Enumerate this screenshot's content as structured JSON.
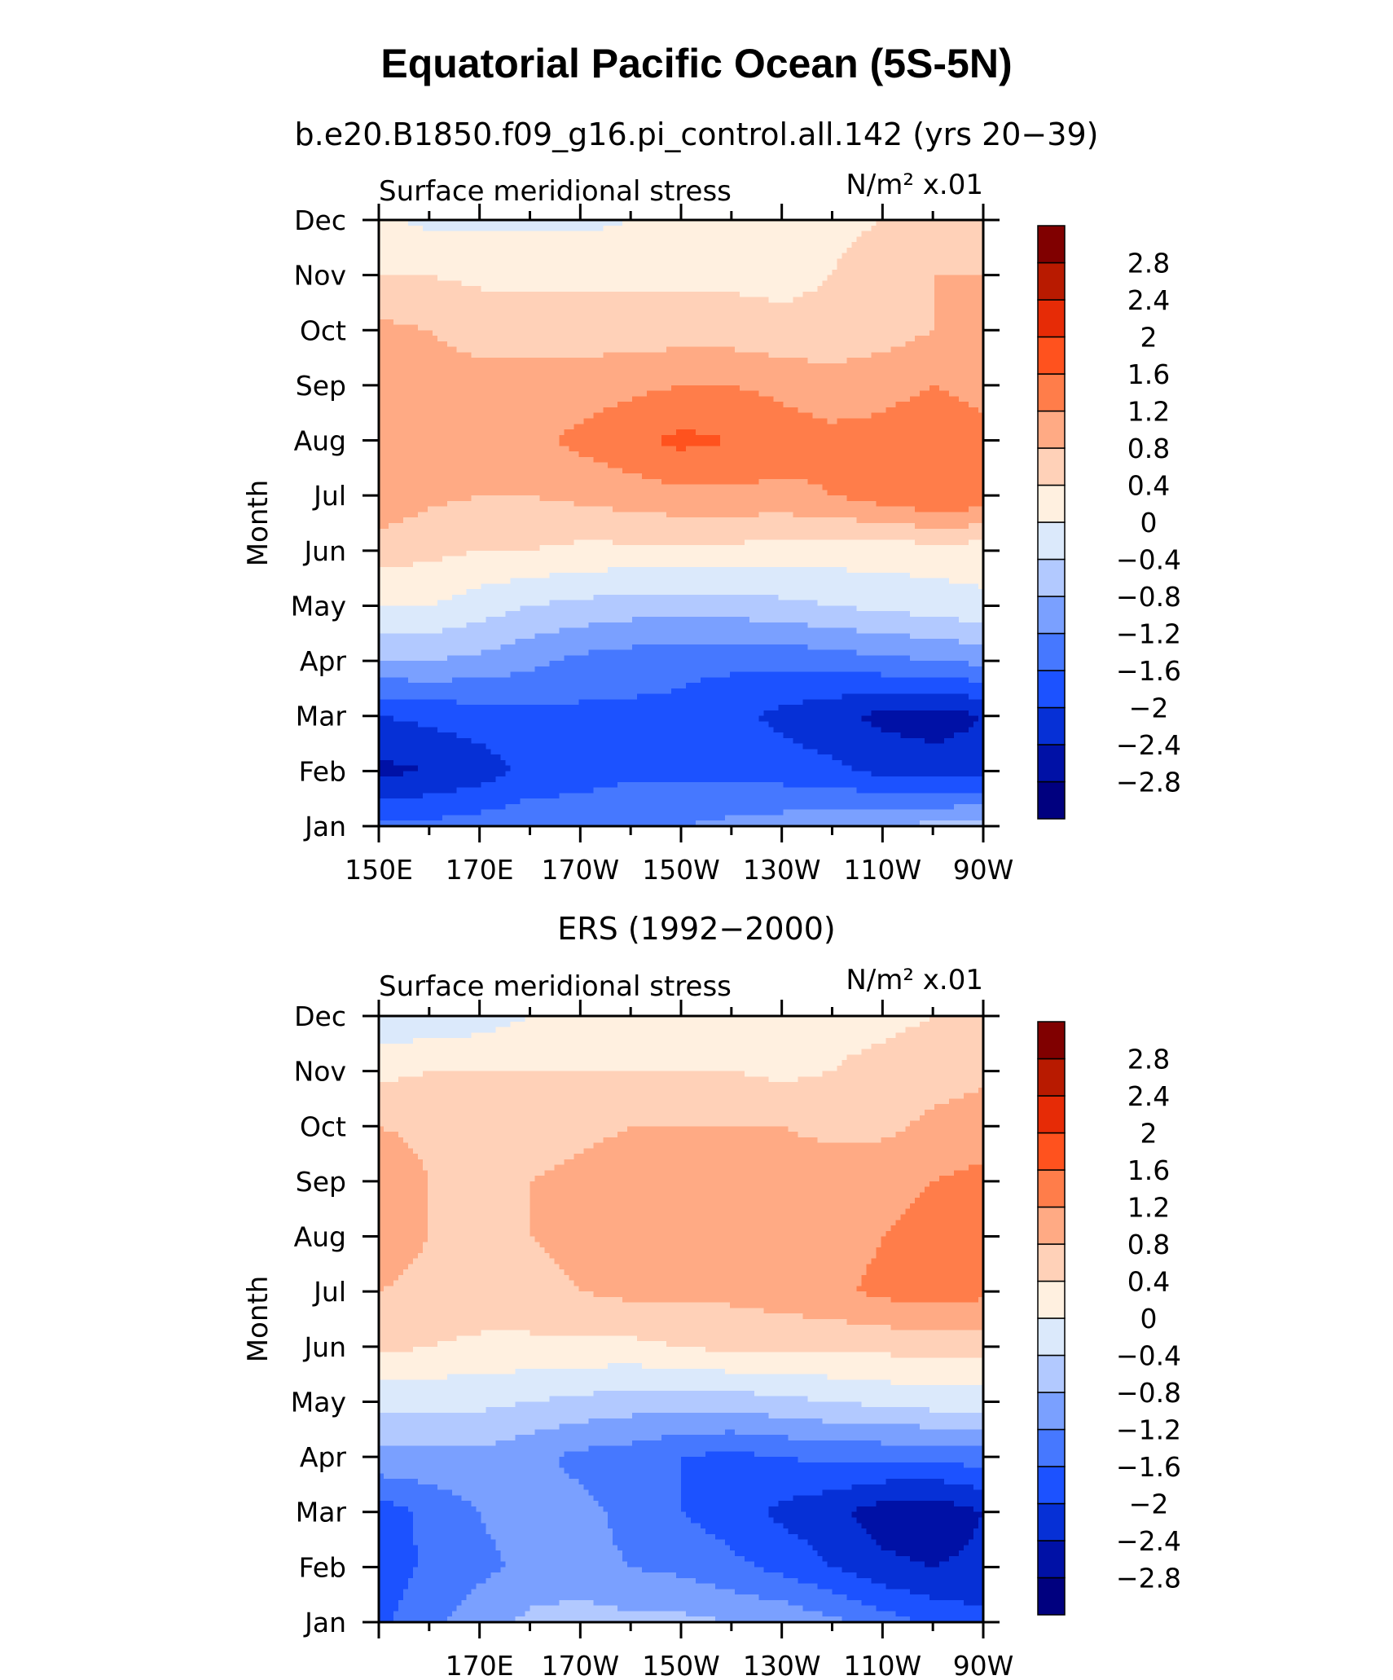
{
  "title": "Equatorial Pacific Ocean (5S-5N)",
  "colorbar": {
    "levels": [
      -2.8,
      -2.4,
      -2,
      -1.6,
      -1.2,
      -0.8,
      -0.4,
      0,
      0.4,
      0.8,
      1.2,
      1.6,
      2,
      2.4,
      2.8
    ],
    "level_labels": [
      "−2.8",
      "−2.4",
      "−2",
      "−1.6",
      "−1.2",
      "−0.8",
      "−0.4",
      "0",
      "0.4",
      "0.8",
      "1.2",
      "1.6",
      "2",
      "2.4",
      "2.8"
    ],
    "colors": [
      "#00007f",
      "#0011a6",
      "#0630d6",
      "#1c52ff",
      "#4678ff",
      "#7aa0ff",
      "#b2c9ff",
      "#dbe9fb",
      "#fff0e0",
      "#ffd1b8",
      "#ffaa84",
      "#ff7d4a",
      "#ff521e",
      "#e62b06",
      "#b81a00",
      "#800000"
    ]
  },
  "chart_data": [
    {
      "type": "heatmap",
      "subtitle": "b.e20.B1850.f09_g16.pi_control.all.142 (yrs 20−39)",
      "left_label": "Surface meridional stress",
      "units_label": "N/m² x.01",
      "ylabel": "Month",
      "y_categories": [
        "Jan",
        "Feb",
        "Mar",
        "Apr",
        "May",
        "Jun",
        "Jul",
        "Aug",
        "Sep",
        "Oct",
        "Nov",
        "Dec"
      ],
      "x_tick_labels": [
        "150E",
        "170E",
        "170W",
        "150W",
        "130W",
        "110W",
        "90W"
      ],
      "x_tick_values": [
        150,
        170,
        190,
        210,
        230,
        250,
        270
      ],
      "xlim": [
        150,
        270
      ],
      "x_nodes": [
        150,
        160,
        170,
        180,
        190,
        200,
        210,
        220,
        230,
        240,
        250,
        260,
        270
      ],
      "values": [
        [
          -1.5,
          -1.5,
          -1.4,
          -1.3,
          -1.3,
          -1.2,
          -1.2,
          -1.1,
          -1.0,
          -0.9,
          -0.8,
          -0.7,
          -0.6
        ],
        [
          -2.5,
          -2.4,
          -2.2,
          -1.9,
          -1.8,
          -1.7,
          -1.7,
          -1.7,
          -1.8,
          -1.9,
          -2.1,
          -2.2,
          -2.2
        ],
        [
          -2.0,
          -1.9,
          -1.8,
          -1.7,
          -1.7,
          -1.7,
          -1.7,
          -1.9,
          -2.1,
          -2.3,
          -2.5,
          -2.6,
          -2.4
        ],
        [
          -0.8,
          -0.8,
          -0.9,
          -1.1,
          -1.3,
          -1.4,
          -1.5,
          -1.5,
          -1.5,
          -1.4,
          -1.3,
          -1.2,
          -1.1
        ],
        [
          0.0,
          0.0,
          -0.2,
          -0.4,
          -0.5,
          -0.6,
          -0.6,
          -0.6,
          -0.5,
          -0.4,
          -0.3,
          -0.2,
          -0.1
        ],
        [
          0.6,
          0.5,
          0.4,
          0.4,
          0.3,
          0.3,
          0.3,
          0.3,
          0.2,
          0.2,
          0.2,
          0.2,
          0.2
        ],
        [
          1.1,
          0.9,
          0.8,
          0.8,
          0.9,
          1.0,
          1.1,
          1.1,
          1.1,
          1.2,
          1.4,
          1.6,
          1.5
        ],
        [
          1.2,
          0.9,
          0.9,
          1.1,
          1.3,
          1.5,
          1.7,
          1.6,
          1.4,
          1.3,
          1.3,
          1.4,
          1.3
        ],
        [
          1.0,
          0.9,
          0.9,
          0.9,
          1.0,
          1.1,
          1.2,
          1.2,
          1.1,
          1.0,
          1.1,
          1.2,
          1.1
        ],
        [
          0.9,
          0.8,
          0.7,
          0.7,
          0.6,
          0.6,
          0.6,
          0.6,
          0.5,
          0.5,
          0.6,
          0.8,
          0.8
        ],
        [
          0.4,
          0.4,
          0.3,
          0.3,
          0.3,
          0.3,
          0.3,
          0.3,
          0.3,
          0.4,
          0.6,
          0.8,
          0.8
        ],
        [
          0.1,
          -0.1,
          -0.1,
          -0.1,
          -0.1,
          0.0,
          0.0,
          0.1,
          0.2,
          0.3,
          0.4,
          0.5,
          0.5
        ]
      ]
    },
    {
      "type": "heatmap",
      "subtitle": "ERS (1992−2000)",
      "left_label": "Surface meridional stress",
      "units_label": "N/m² x.01",
      "ylabel": "Month",
      "y_categories": [
        "Jan",
        "Feb",
        "Mar",
        "Apr",
        "May",
        "Jun",
        "Jul",
        "Aug",
        "Sep",
        "Oct",
        "Nov",
        "Dec"
      ],
      "x_tick_labels": [
        "170E",
        "170W",
        "150W",
        "130W",
        "110W",
        "90W"
      ],
      "x_tick_values": [
        170,
        190,
        210,
        230,
        250,
        270
      ],
      "xlim": [
        150,
        270
      ],
      "x_nodes": [
        150,
        160,
        170,
        180,
        190,
        200,
        210,
        220,
        230,
        240,
        250,
        260,
        270
      ],
      "values": [
        [
          -1.7,
          -1.3,
          -1.0,
          -0.7,
          -0.6,
          -0.7,
          -0.7,
          -0.8,
          -0.9,
          -1.1,
          -1.4,
          -1.7,
          -1.9
        ],
        [
          -1.9,
          -1.5,
          -1.3,
          -1.1,
          -1.1,
          -1.2,
          -1.3,
          -1.5,
          -1.7,
          -2.0,
          -2.3,
          -2.4,
          -2.3
        ],
        [
          -1.8,
          -1.5,
          -1.2,
          -1.0,
          -1.1,
          -1.3,
          -1.6,
          -1.8,
          -2.1,
          -2.3,
          -2.6,
          -2.7,
          -2.4
        ],
        [
          -0.9,
          -0.9,
          -0.9,
          -1.1,
          -1.3,
          -1.4,
          -1.6,
          -1.7,
          -1.6,
          -1.5,
          -1.5,
          -1.5,
          -1.4
        ],
        [
          -0.3,
          -0.3,
          -0.3,
          -0.4,
          -0.5,
          -0.6,
          -0.6,
          -0.6,
          -0.5,
          -0.4,
          -0.3,
          -0.2,
          -0.2
        ],
        [
          0.5,
          0.4,
          0.3,
          0.3,
          0.3,
          0.3,
          0.4,
          0.5,
          0.5,
          0.5,
          0.5,
          0.6,
          0.6
        ],
        [
          0.8,
          0.7,
          0.7,
          0.7,
          0.8,
          0.9,
          0.9,
          0.9,
          1.0,
          1.1,
          1.3,
          1.4,
          1.3
        ],
        [
          1.0,
          0.8,
          0.7,
          0.8,
          0.9,
          0.9,
          1.0,
          0.9,
          1.0,
          1.0,
          1.2,
          1.3,
          1.3
        ],
        [
          1.1,
          0.8,
          0.7,
          0.8,
          0.9,
          1.0,
          1.0,
          1.0,
          1.0,
          1.0,
          1.1,
          1.2,
          1.3
        ],
        [
          0.8,
          0.7,
          0.6,
          0.6,
          0.7,
          0.8,
          0.8,
          0.8,
          0.8,
          0.7,
          0.7,
          0.9,
          1.0
        ],
        [
          0.3,
          0.4,
          0.4,
          0.4,
          0.4,
          0.4,
          0.4,
          0.4,
          0.3,
          0.4,
          0.5,
          0.6,
          0.7
        ],
        [
          -0.3,
          -0.3,
          -0.2,
          0.0,
          0.0,
          0.1,
          0.2,
          0.2,
          0.3,
          0.3,
          0.3,
          0.4,
          0.4
        ]
      ]
    }
  ]
}
